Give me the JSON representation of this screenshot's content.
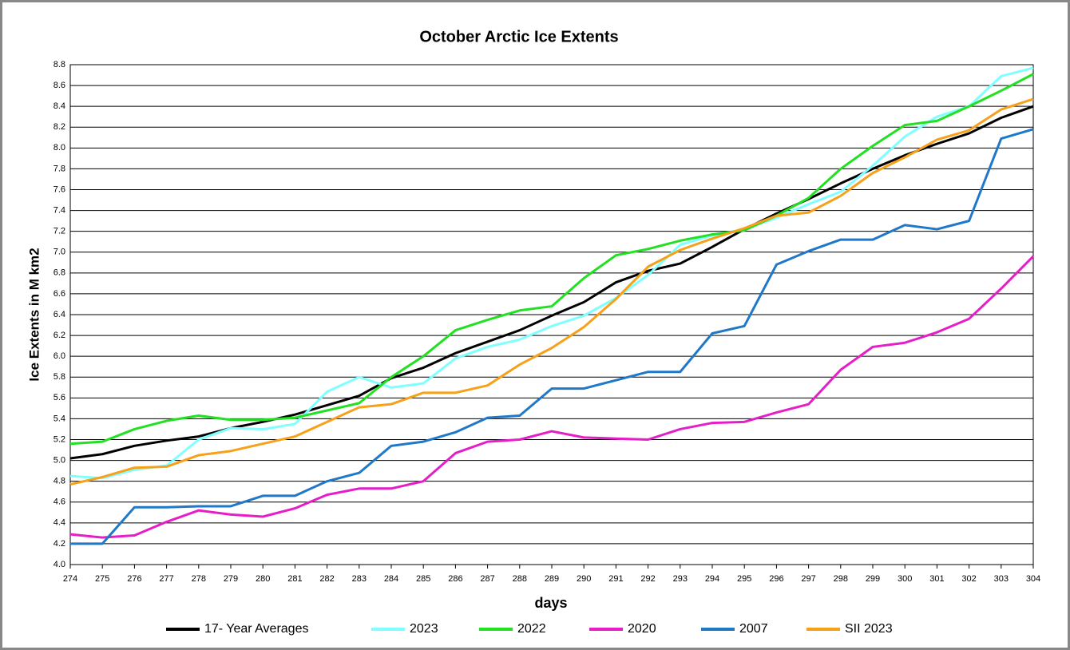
{
  "chart_data": {
    "type": "line",
    "title": "October  Arctic Ice Extents",
    "x_label": "days",
    "y_label": "Ice Extents in M km2",
    "x": [
      274,
      275,
      276,
      277,
      278,
      279,
      280,
      281,
      282,
      283,
      284,
      285,
      286,
      287,
      288,
      289,
      290,
      291,
      292,
      293,
      294,
      295,
      296,
      297,
      298,
      299,
      300,
      301,
      302,
      303,
      304
    ],
    "xlim": [
      274,
      304
    ],
    "xticks": [
      274,
      275,
      276,
      277,
      278,
      279,
      280,
      281,
      282,
      283,
      284,
      285,
      286,
      287,
      288,
      289,
      290,
      291,
      292,
      293,
      294,
      295,
      296,
      297,
      298,
      299,
      300,
      301,
      302,
      303,
      304
    ],
    "ylim": [
      4,
      8.8
    ],
    "yticks": [
      {
        "value": 4,
        "label": "4.0"
      },
      4.2,
      4.4,
      4.6,
      4.8,
      {
        "value": 5,
        "label": "5.0"
      },
      5.2,
      5.4,
      5.6,
      5.8,
      {
        "value": 6,
        "label": "6.0"
      },
      6.2,
      6.4,
      6.6,
      6.8,
      {
        "value": 7,
        "label": "7.0"
      },
      7.2,
      7.4,
      7.6,
      7.8,
      {
        "value": 8,
        "label": "8.0"
      },
      8.2,
      8.4,
      8.6,
      8.8
    ],
    "grid": true,
    "legend": "bottom",
    "series": [
      {
        "name": "17- Year Averages",
        "color": "#000000",
        "values": [
          5.02,
          5.06,
          5.14,
          5.19,
          5.23,
          5.31,
          5.37,
          5.44,
          5.53,
          5.62,
          5.79,
          5.89,
          6.03,
          6.14,
          6.25,
          6.39,
          6.52,
          6.71,
          6.82,
          6.89,
          7.05,
          7.22,
          7.37,
          7.51,
          7.66,
          7.8,
          7.93,
          8.04,
          8.14,
          8.29,
          8.4
        ]
      },
      {
        "name": "2023",
        "color": "#7fffff",
        "values": [
          4.85,
          4.83,
          4.91,
          4.95,
          5.2,
          5.31,
          5.3,
          5.35,
          5.66,
          5.8,
          5.7,
          5.74,
          5.98,
          6.09,
          6.16,
          6.29,
          6.39,
          6.56,
          6.78,
          7.07,
          7.16,
          7.22,
          7.33,
          7.46,
          7.58,
          7.83,
          8.11,
          8.3,
          8.4,
          8.69,
          8.77
        ]
      },
      {
        "name": "2022",
        "color": "#22e022",
        "values": [
          5.16,
          5.18,
          5.3,
          5.38,
          5.43,
          5.39,
          5.39,
          5.41,
          5.48,
          5.55,
          5.8,
          6.0,
          6.25,
          6.35,
          6.44,
          6.48,
          6.75,
          6.97,
          7.03,
          7.11,
          7.17,
          7.21,
          7.35,
          7.52,
          7.8,
          8.02,
          8.22,
          8.26,
          8.4,
          8.55,
          8.71
        ]
      },
      {
        "name": "2020",
        "color": "#e61ec8",
        "values": [
          4.29,
          4.26,
          4.28,
          4.41,
          4.52,
          4.48,
          4.46,
          4.54,
          4.67,
          4.73,
          4.73,
          4.8,
          5.07,
          5.18,
          5.2,
          5.28,
          5.22,
          5.21,
          5.2,
          5.3,
          5.36,
          5.37,
          5.46,
          5.54,
          5.87,
          6.09,
          6.13,
          6.23,
          6.36,
          6.65,
          6.96
        ]
      },
      {
        "name": "2007",
        "color": "#1f78c8",
        "values": [
          4.2,
          4.2,
          4.55,
          4.55,
          4.56,
          4.56,
          4.66,
          4.66,
          4.8,
          4.88,
          5.14,
          5.18,
          5.27,
          5.41,
          5.43,
          5.69,
          5.69,
          5.77,
          5.85,
          5.85,
          6.22,
          6.29,
          6.88,
          7.01,
          7.12,
          7.12,
          7.26,
          7.22,
          7.3,
          8.09,
          8.18
        ]
      },
      {
        "name": "SII 2023",
        "color": "#f7a11a",
        "values": [
          4.77,
          4.84,
          4.93,
          4.94,
          5.05,
          5.09,
          5.16,
          5.23,
          5.37,
          5.51,
          5.54,
          5.65,
          5.65,
          5.72,
          5.92,
          6.08,
          6.28,
          6.55,
          6.86,
          7.02,
          7.13,
          7.23,
          7.35,
          7.38,
          7.54,
          7.76,
          7.91,
          8.08,
          8.17,
          8.37,
          8.47
        ]
      }
    ]
  }
}
